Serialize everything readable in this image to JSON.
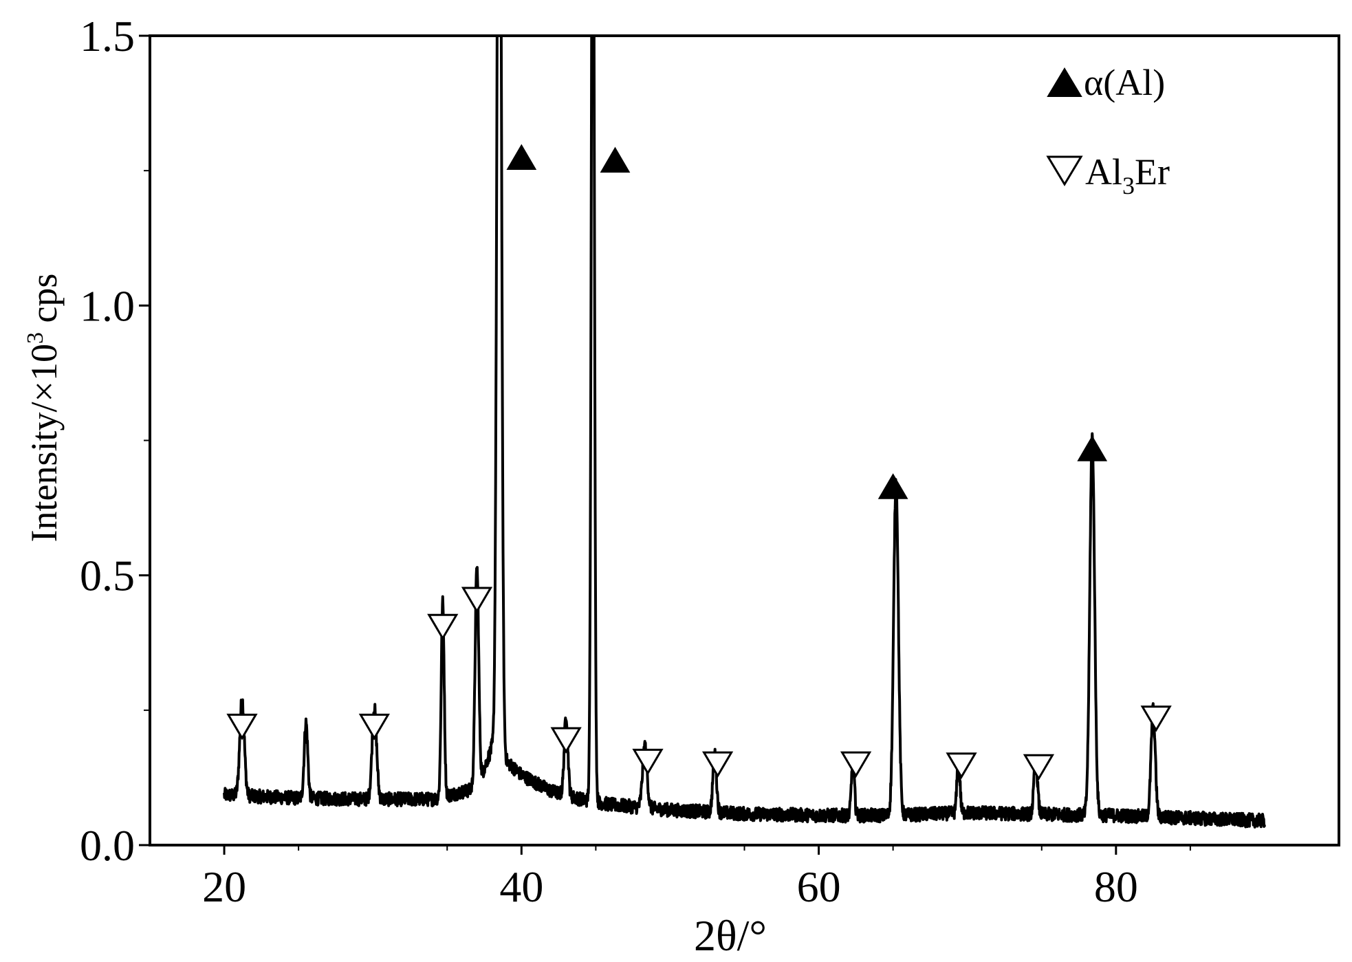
{
  "chart_data": {
    "type": "line",
    "title": "",
    "xlabel": "2θ/°",
    "ylabel": {
      "main": "Intensity/×10",
      "superscript": "3",
      "unit": " cps"
    },
    "xlim": [
      15,
      95
    ],
    "ylim": [
      0,
      1.5
    ],
    "x_ticks": [
      20,
      40,
      60,
      80
    ],
    "x_tick_labels": [
      "20",
      "40",
      "60",
      "80"
    ],
    "y_ticks": [
      0.0,
      0.5,
      1.0,
      1.5
    ],
    "y_tick_labels": [
      "0.0",
      "0.5",
      "1.0",
      "1.5"
    ],
    "y_minor_ticks": [
      0.25,
      0.75,
      1.25
    ],
    "grid": false,
    "legend_position": "top-right",
    "legend": [
      {
        "symbol": "filled-triangle-up",
        "label": "α(Al)"
      },
      {
        "symbol": "open-triangle-down",
        "label_main": "Al",
        "label_sub": "3",
        "label_tail": "Er"
      }
    ],
    "baseline": {
      "x": [
        20,
        25,
        30,
        34,
        37,
        38,
        40,
        42,
        44,
        46,
        50,
        55,
        60,
        65,
        70,
        75,
        80,
        85,
        90
      ],
      "y": [
        0.093,
        0.087,
        0.085,
        0.085,
        0.105,
        0.18,
        0.13,
        0.1,
        0.085,
        0.075,
        0.065,
        0.058,
        0.055,
        0.055,
        0.06,
        0.057,
        0.055,
        0.05,
        0.045
      ]
    },
    "peaks": [
      {
        "x": 21.2,
        "height": 0.18,
        "width": 0.15
      },
      {
        "x": 25.5,
        "height": 0.14,
        "width": 0.12
      },
      {
        "x": 30.1,
        "height": 0.17,
        "width": 0.15
      },
      {
        "x": 34.7,
        "height": 0.36,
        "width": 0.1
      },
      {
        "x": 37.0,
        "height": 0.41,
        "width": 0.12
      },
      {
        "x": 38.5,
        "height": 2.2,
        "width": 0.14
      },
      {
        "x": 43.0,
        "height": 0.15,
        "width": 0.12
      },
      {
        "x": 44.8,
        "height": 2.0,
        "width": 0.1
      },
      {
        "x": 48.3,
        "height": 0.115,
        "width": 0.15
      },
      {
        "x": 53.0,
        "height": 0.11,
        "width": 0.12
      },
      {
        "x": 62.3,
        "height": 0.105,
        "width": 0.1
      },
      {
        "x": 65.2,
        "height": 0.62,
        "width": 0.16
      },
      {
        "x": 69.4,
        "height": 0.1,
        "width": 0.1
      },
      {
        "x": 74.6,
        "height": 0.1,
        "width": 0.12
      },
      {
        "x": 78.4,
        "height": 0.7,
        "width": 0.16
      },
      {
        "x": 82.5,
        "height": 0.2,
        "width": 0.14
      }
    ],
    "annotations": [
      {
        "phase": "Al3Er",
        "x": 21.2,
        "y": 0.22
      },
      {
        "phase": "Al3Er",
        "x": 30.1,
        "y": 0.22
      },
      {
        "phase": "Al3Er",
        "x": 34.7,
        "y": 0.405
      },
      {
        "phase": "Al3Er",
        "x": 37.0,
        "y": 0.455
      },
      {
        "phase": "α(Al)",
        "x": 40.0,
        "y": 1.275
      },
      {
        "phase": "Al3Er",
        "x": 43.0,
        "y": 0.195
      },
      {
        "phase": "α(Al)",
        "x": 46.3,
        "y": 1.27
      },
      {
        "phase": "Al3Er",
        "x": 48.5,
        "y": 0.155
      },
      {
        "phase": "Al3Er",
        "x": 53.2,
        "y": 0.15
      },
      {
        "phase": "Al3Er",
        "x": 62.5,
        "y": 0.15
      },
      {
        "phase": "α(Al)",
        "x": 65.0,
        "y": 0.665
      },
      {
        "phase": "Al3Er",
        "x": 69.6,
        "y": 0.148
      },
      {
        "phase": "Al3Er",
        "x": 74.8,
        "y": 0.145
      },
      {
        "phase": "α(Al)",
        "x": 78.4,
        "y": 0.735
      },
      {
        "phase": "Al3Er",
        "x": 82.7,
        "y": 0.235
      }
    ]
  }
}
